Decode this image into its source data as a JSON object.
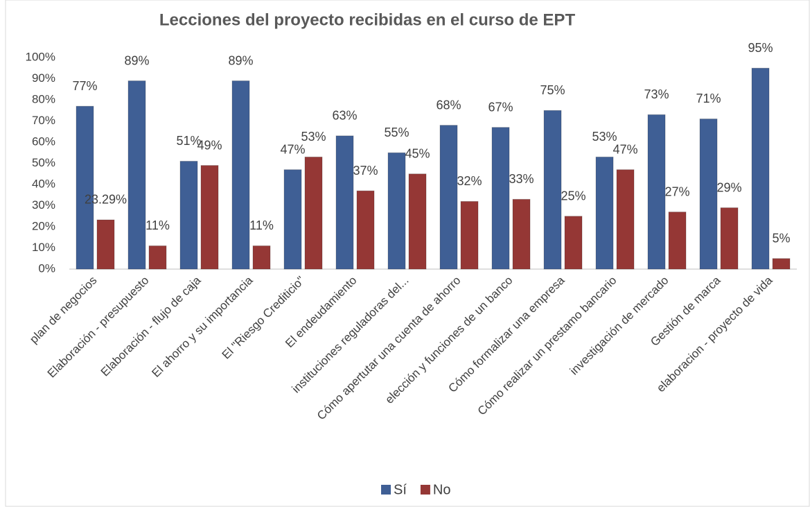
{
  "chart_data": {
    "type": "bar",
    "title": "Lecciones del proyecto recibidas en el curso de EPT",
    "categories": [
      "plan de negocios",
      "Elaboración - presupuesto",
      "Elaboración - flujo de caja",
      "El ahorro y su importancia",
      "El \"Riesgo Crediticio\"",
      "El endeudamiento",
      "instituciones reguladoras del...",
      "Cómo apertutar una cuenta de ahorro",
      "elección y funciones de un banco",
      "Cómo formalizar una empresa",
      "Cómo realizar un prestamo bancario",
      "investigación de mercado",
      "Gestión de marca",
      "elaboracion - proyecto de vida"
    ],
    "series": [
      {
        "name": "Sí",
        "color": "#3f5f95",
        "values": [
          77,
          89,
          51,
          89,
          47,
          63,
          55,
          68,
          67,
          75,
          53,
          73,
          71,
          95
        ],
        "value_labels": [
          "77%",
          "89%",
          "51%",
          "89%",
          "47%",
          "63%",
          "55%",
          "68%",
          "67%",
          "75%",
          "53%",
          "73%",
          "71%",
          "95%"
        ]
      },
      {
        "name": "No",
        "color": "#953735",
        "values": [
          23.29,
          11,
          49,
          11,
          53,
          37,
          45,
          32,
          33,
          25,
          47,
          27,
          29,
          5
        ],
        "value_labels": [
          "23.29%",
          "11%",
          "49%",
          "11%",
          "53%",
          "37%",
          "45%",
          "32%",
          "33%",
          "25%",
          "47%",
          "27%",
          "29%",
          "5%"
        ]
      }
    ],
    "ylim": [
      0,
      100
    ],
    "yticks": [
      {
        "value": 0,
        "label": "0%"
      },
      {
        "value": 10,
        "label": "10%"
      },
      {
        "value": 20,
        "label": "20%"
      },
      {
        "value": 30,
        "label": "30%"
      },
      {
        "value": 40,
        "label": "40%"
      },
      {
        "value": 50,
        "label": "50%"
      },
      {
        "value": 60,
        "label": "60%"
      },
      {
        "value": 70,
        "label": "70%"
      },
      {
        "value": 80,
        "label": "80%"
      },
      {
        "value": 90,
        "label": "90%"
      },
      {
        "value": 100,
        "label": "100%"
      }
    ],
    "grid": false,
    "legend": "bottom"
  }
}
